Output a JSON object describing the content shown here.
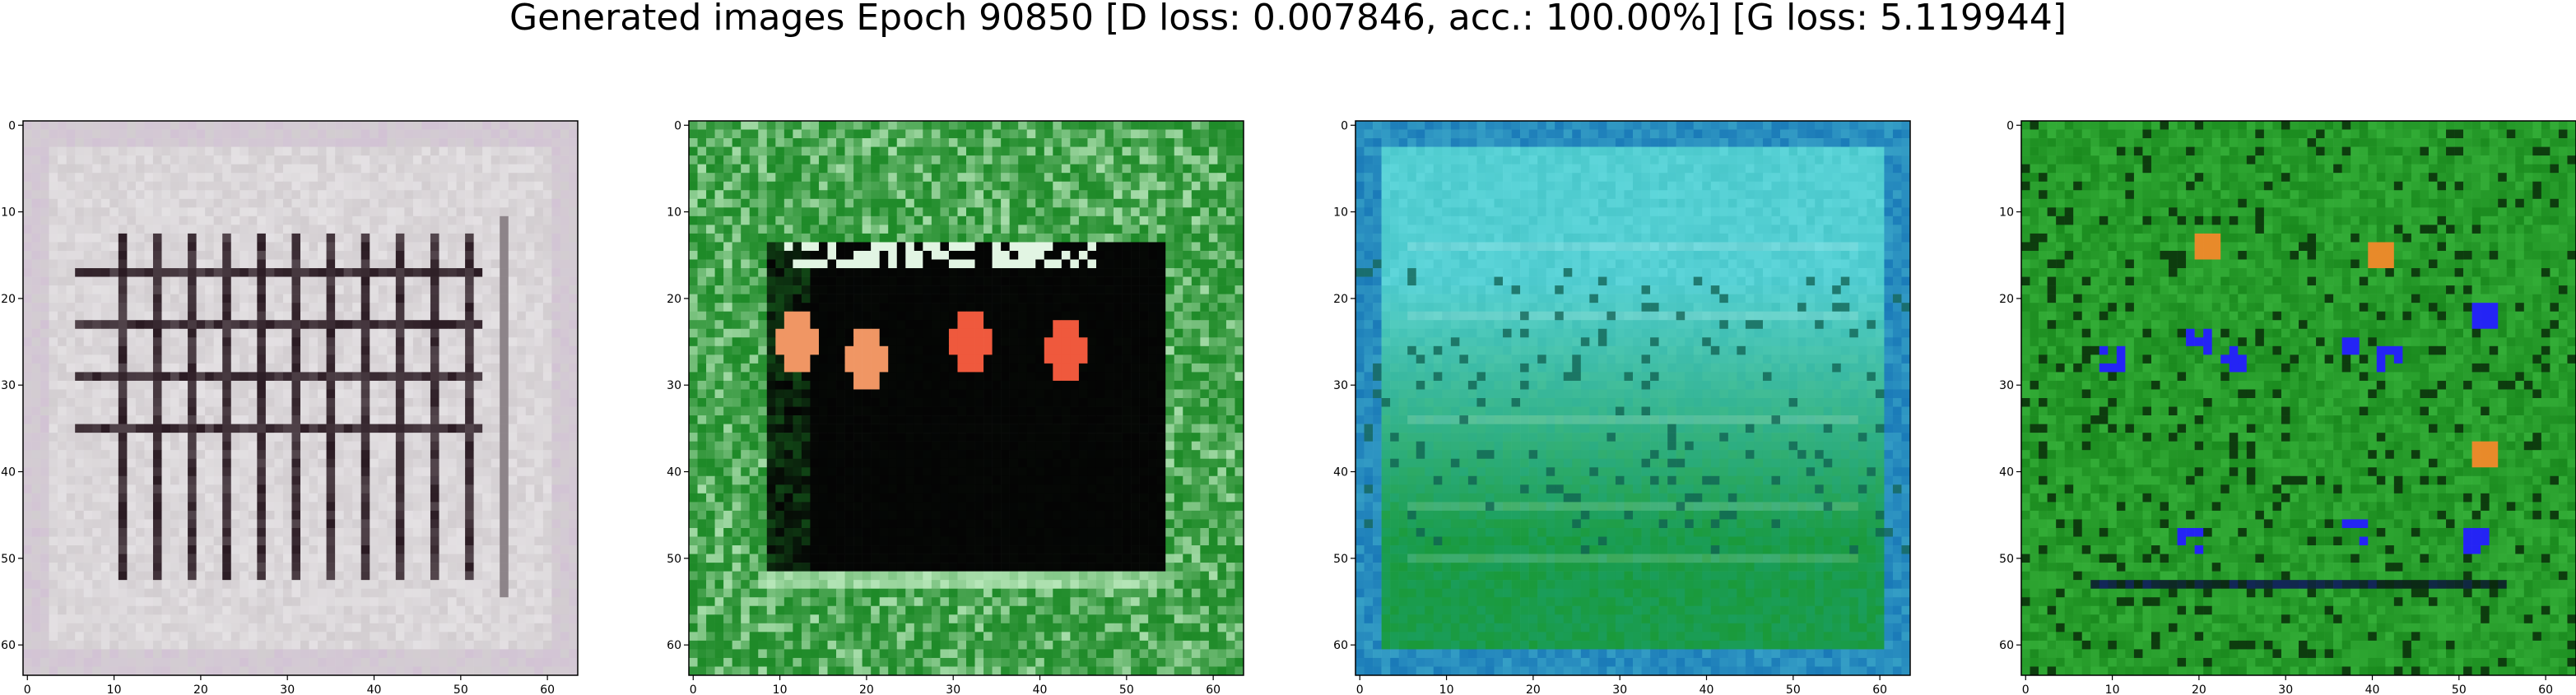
{
  "figure": {
    "title": "Generated images Epoch 90850 [D loss: 0.007846, acc.: 100.00%] [G loss: 5.119944]"
  },
  "panels": [
    {
      "palette": {
        "base": "#d2cdd0",
        "light": "#f0eef0",
        "dark": "#2a1a22",
        "accent": "#8a7a88"
      },
      "pattern": "grid-bars"
    },
    {
      "palette": {
        "base": "#1e8a28",
        "light": "#b6e6b8",
        "dark": "#040404",
        "accent": "#ee3a2a"
      },
      "pattern": "dark-window"
    },
    {
      "palette": {
        "base": "#1aa6a8",
        "light": "#5ed6da",
        "dark": "#0e5a4a",
        "accent": "#1a9a3a"
      },
      "pattern": "teal-gradient"
    },
    {
      "palette": {
        "base": "#1a8a1e",
        "light": "#42c246",
        "dark": "#0a2a0a",
        "accent": "#2222ee"
      },
      "pattern": "green-blue-specks"
    }
  ],
  "axes": {
    "x_ticks": [
      "0",
      "10",
      "20",
      "30",
      "40",
      "50",
      "60"
    ],
    "y_ticks": [
      "0",
      "10",
      "20",
      "30",
      "40",
      "50",
      "60"
    ]
  }
}
